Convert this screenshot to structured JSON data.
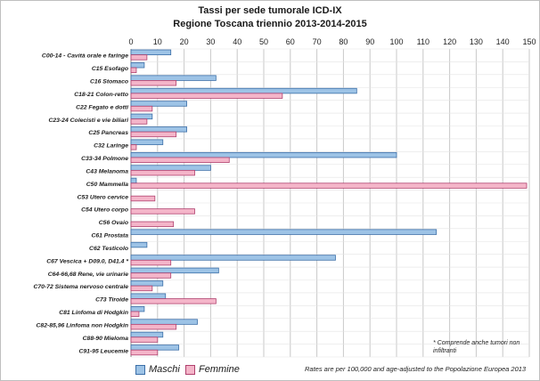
{
  "chart_data": {
    "type": "bar",
    "orientation": "horizontal",
    "title": "Tassi per sede tumorale ICD-IX",
    "subtitle": "Regione Toscana triennio 2013-2014-2015",
    "xlim": [
      0,
      150
    ],
    "xticks": [
      "0",
      "10",
      "20",
      "30",
      "40",
      "50",
      "60",
      "70",
      "80",
      "90",
      "100",
      "110",
      "120",
      "130",
      "140",
      "150"
    ],
    "grid": true,
    "legend_position": "bottom-left",
    "categories": [
      "C00-14 - Cavità orale e faringe",
      "C15 Esofago",
      "C16 Stomaco",
      "C18-21 Colon-retto",
      "C22 Fegato e dotti",
      "C23-24 Colecisti e vie biliari",
      "C25 Pancreas",
      "C32 Laringe",
      "C33-34 Polmone",
      "C43 Melanoma",
      "C50 Mammella",
      "C53 Utero cervice",
      "C54 Utero corpo",
      "C56 Ovaio",
      "C61 Prostata",
      "C62 Testicolo",
      "C67 Vescica + D09.0, D41.4 *",
      "C64-66,68 Rene, vie urinarie",
      "C70-72 Sistema nervoso centrale",
      "C73 Tiroide",
      "C81 Linfoma di Hodgkin",
      "C82-85,96 Linfoma non Hodgkin",
      "C88-90 Mieloma",
      "C91-95 Leucemie"
    ],
    "series": [
      {
        "name": "Maschi",
        "color": "#9dc3e6",
        "values": [
          15,
          5,
          32,
          85,
          21,
          8,
          21,
          12,
          100,
          30,
          2,
          null,
          null,
          null,
          115,
          6,
          77,
          33,
          12,
          13,
          5,
          25,
          12,
          18
        ]
      },
      {
        "name": "Femmine",
        "color": "#f4b5c9",
        "values": [
          6,
          2,
          17,
          57,
          8,
          6,
          17,
          2,
          37,
          24,
          149,
          9,
          24,
          16,
          null,
          null,
          15,
          15,
          8,
          32,
          3,
          17,
          10,
          10
        ]
      }
    ]
  },
  "notes": {
    "rates": "Rates are per 100,000 and age-adjusted to the Popolazione Europea 2013",
    "star": "* Comprende anche tumori non infiltranti"
  },
  "colors": {
    "maschi_fill": "#9dc3e6",
    "maschi_stroke": "#3c6fa8",
    "femmine_fill": "#f4b5c9",
    "femmine_stroke": "#b0416e",
    "grid": "#c8c8c8"
  }
}
